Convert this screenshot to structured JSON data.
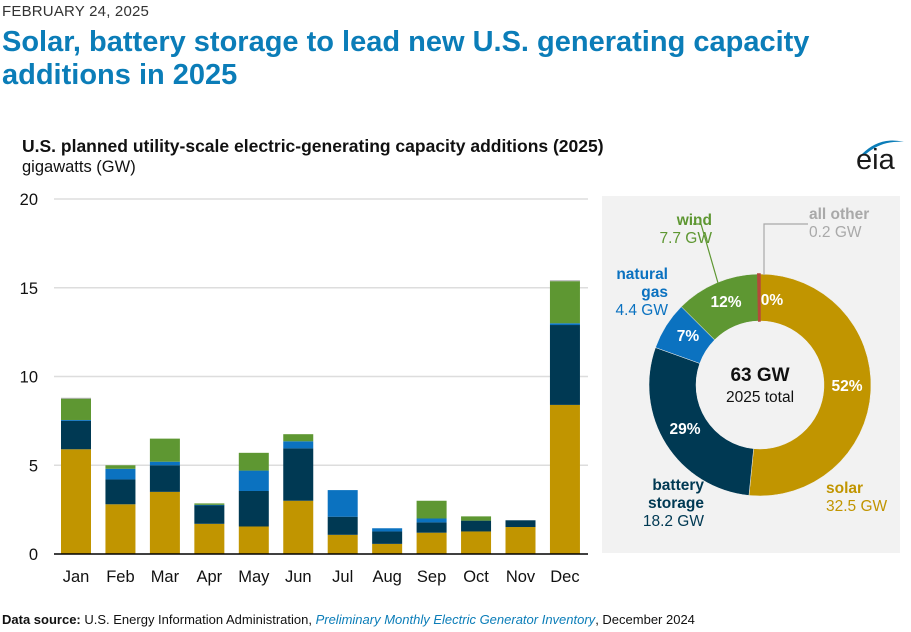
{
  "header": {
    "date": "FEBRUARY 24, 2025",
    "headline": "Solar, battery storage to lead new U.S. generating capacity additions in 2025"
  },
  "chart_header": {
    "title": "U.S. planned utility-scale electric-generating capacity additions (2025)",
    "units": "gigawatts (GW)",
    "logo": "eia"
  },
  "colors": {
    "solar": "#c19500",
    "battery_storage": "#003953",
    "natural_gas": "#0b72c0",
    "wind": "#5e9732",
    "all_other": "#a9a9a9",
    "all_other_slice": "#b5493a",
    "grid": "#dddddd",
    "axis": "#000000",
    "headline": "#0b7db8"
  },
  "chart_data": [
    {
      "type": "bar",
      "stacked": true,
      "title": "U.S. planned utility-scale electric-generating capacity additions (2025)",
      "ylabel": "gigawatts (GW)",
      "xlabel": "",
      "ylim": [
        0,
        20
      ],
      "yticks": [
        0,
        5,
        10,
        15,
        20
      ],
      "grid": true,
      "categories": [
        "Jan",
        "Feb",
        "Mar",
        "Apr",
        "May",
        "Jun",
        "Jul",
        "Aug",
        "Sep",
        "Oct",
        "Nov",
        "Dec"
      ],
      "series": [
        {
          "name": "solar",
          "color_key": "solar",
          "values": [
            5.9,
            2.8,
            3.5,
            1.7,
            1.55,
            3.0,
            1.08,
            0.57,
            1.2,
            1.27,
            1.52,
            8.4
          ]
        },
        {
          "name": "battery storage",
          "color_key": "battery_storage",
          "values": [
            1.6,
            1.4,
            1.5,
            1.05,
            2.0,
            2.95,
            1.02,
            0.7,
            0.58,
            0.61,
            0.38,
            4.5
          ]
        },
        {
          "name": "natural gas",
          "color_key": "natural_gas",
          "values": [
            0.05,
            0.6,
            0.2,
            0.02,
            1.15,
            0.4,
            1.5,
            0.18,
            0.22,
            0.0,
            0.0,
            0.1
          ]
        },
        {
          "name": "wind",
          "color_key": "wind",
          "values": [
            1.2,
            0.2,
            1.3,
            0.08,
            1.0,
            0.4,
            0.0,
            0.0,
            1.0,
            0.24,
            0.0,
            2.37
          ]
        },
        {
          "name": "all other",
          "color_key": "all_other",
          "values": [
            0.05,
            0.0,
            0.0,
            0.0,
            0.0,
            0.0,
            0.0,
            0.0,
            0.0,
            0.0,
            0.0,
            0.05
          ]
        }
      ]
    },
    {
      "type": "pie",
      "donut": true,
      "center_value": "63 GW",
      "center_label": "2025 total",
      "slices": [
        {
          "name": "solar",
          "label": "solar",
          "value": 32.5,
          "value_label": "32.5 GW",
          "percent_label": "52%",
          "color_key": "solar"
        },
        {
          "name": "battery storage",
          "label": "battery storage",
          "value": 18.2,
          "value_label": "18.2 GW",
          "percent_label": "29%",
          "color_key": "battery_storage"
        },
        {
          "name": "natural gas",
          "label": "natural gas",
          "value": 4.4,
          "value_label": "4.4 GW",
          "percent_label": "7%",
          "color_key": "natural_gas"
        },
        {
          "name": "wind",
          "label": "wind",
          "value": 7.7,
          "value_label": "7.7 GW",
          "percent_label": "12%",
          "color_key": "wind"
        },
        {
          "name": "all other",
          "label": "all other",
          "value": 0.2,
          "value_label": "0.2 GW",
          "percent_label": "0%",
          "color_key": "all_other_slice"
        }
      ]
    }
  ],
  "donut_labels": {
    "wind_name": "wind",
    "wind_value": "7.7 GW",
    "other_name": "all other",
    "other_value": "0.2 GW",
    "gas_name_1": "natural",
    "gas_name_2": "gas",
    "gas_value": "4.4 GW",
    "battery_name_1": "battery",
    "battery_name_2": "storage",
    "battery_value": "18.2 GW",
    "solar_name": "solar",
    "solar_value": "32.5 GW"
  },
  "footer": {
    "label": "Data source:",
    "source": " U.S. Energy Information Administration, ",
    "publication": "Preliminary Monthly Electric Generator Inventory",
    "date": ", December 2024"
  }
}
